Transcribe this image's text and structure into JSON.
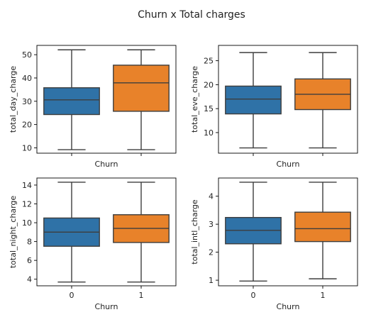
{
  "chart_data": {
    "title": "Churn x Total charges",
    "colors": {
      "0": "#2f72a7",
      "1": "#e8822a"
    },
    "charts": [
      {
        "type": "box",
        "xlabel": "Churn",
        "ylabel": "total_day_charge",
        "categories": [
          "0",
          "1"
        ],
        "show_xtick_labels": false,
        "ylim": [
          7.7,
          54.0
        ],
        "yticks": [
          10,
          20,
          30,
          40,
          50
        ],
        "ytick_labels": [
          "10",
          "20",
          "30",
          "40",
          "50"
        ],
        "boxes": [
          {
            "category": "0",
            "whisker_low": 9.2,
            "q1": 24.3,
            "median": 30.6,
            "q3": 35.8,
            "whisker_high": 52.1
          },
          {
            "category": "1",
            "whisker_low": 9.2,
            "q1": 25.7,
            "median": 37.9,
            "q3": 45.5,
            "whisker_high": 52.1
          }
        ]
      },
      {
        "type": "box",
        "xlabel": "Churn",
        "ylabel": "total_eve_charge",
        "categories": [
          "0",
          "1"
        ],
        "show_xtick_labels": false,
        "ylim": [
          5.7,
          28.2
        ],
        "yticks": [
          10,
          15,
          20,
          25
        ],
        "ytick_labels": [
          "10",
          "15",
          "20",
          "25"
        ],
        "boxes": [
          {
            "category": "0",
            "whisker_low": 6.8,
            "q1": 13.9,
            "median": 17.0,
            "q3": 19.7,
            "whisker_high": 26.7
          },
          {
            "category": "1",
            "whisker_low": 6.8,
            "q1": 14.8,
            "median": 18.0,
            "q3": 21.2,
            "whisker_high": 26.7
          }
        ]
      },
      {
        "type": "box",
        "xlabel": "Churn",
        "ylabel": "total_night_charge",
        "categories": [
          "0",
          "1"
        ],
        "show_xtick_labels": true,
        "ylim": [
          3.3,
          14.75
        ],
        "yticks": [
          4,
          6,
          8,
          10,
          12,
          14
        ],
        "ytick_labels": [
          "4",
          "6",
          "8",
          "10",
          "12",
          "14"
        ],
        "boxes": [
          {
            "category": "0",
            "whisker_low": 3.7,
            "q1": 7.5,
            "median": 9.0,
            "q3": 10.5,
            "whisker_high": 14.3
          },
          {
            "category": "1",
            "whisker_low": 3.7,
            "q1": 7.9,
            "median": 9.4,
            "q3": 10.85,
            "whisker_high": 14.3
          }
        ]
      },
      {
        "type": "box",
        "xlabel": "Churn",
        "ylabel": "total_intl_charge",
        "categories": [
          "0",
          "1"
        ],
        "show_xtick_labels": true,
        "ylim": [
          0.8,
          4.65
        ],
        "yticks": [
          1,
          2,
          3,
          4
        ],
        "ytick_labels": [
          "1",
          "2",
          "3",
          "4"
        ],
        "boxes": [
          {
            "category": "0",
            "whisker_low": 0.97,
            "q1": 2.3,
            "median": 2.78,
            "q3": 3.24,
            "whisker_high": 4.5
          },
          {
            "category": "1",
            "whisker_low": 1.05,
            "q1": 2.38,
            "median": 2.84,
            "q3": 3.43,
            "whisker_high": 4.5
          }
        ]
      }
    ]
  }
}
